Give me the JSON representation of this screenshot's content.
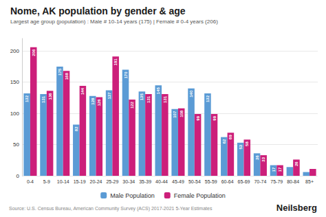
{
  "chart_data": {
    "type": "bar",
    "title": "Nome, AK population by gender & age",
    "subtitle": "Largest age group (population) : Male # 10-14 years (175) | Female # 0-4 years (206)",
    "annotations": [
      "Source: U.S. Census Bureau, American Community Survey (ACS) 2017-2021 5-Year Estimates",
      "Neilsberg"
    ],
    "categories": [
      "0-4",
      "5-9",
      "10-14",
      "15-19",
      "20-24",
      "25-29",
      "30-34",
      "35-39",
      "40-44",
      "45-49",
      "50-54",
      "55-59",
      "60-64",
      "65-69",
      "70-74",
      "75-79",
      "80-84",
      "85+"
    ],
    "series": [
      {
        "name": "Male Population",
        "color": "#5b9bd5",
        "values": [
          132,
          131,
          175,
          82,
          128,
          137,
          170,
          135,
          145,
          107,
          140,
          132,
          62,
          53,
          36,
          17,
          14,
          6
        ],
        "value_labels": [
          "132",
          "131",
          "175",
          "82",
          "128",
          "137",
          "170",
          "135",
          "145",
          "107",
          "140",
          "132",
          "62",
          "53",
          "36",
          "17",
          null,
          null
        ]
      },
      {
        "name": "Female Population",
        "color": "#cc1f7a",
        "values": [
          206,
          136,
          168,
          144,
          126,
          191,
          122,
          131,
          131,
          108,
          99,
          99,
          69,
          58,
          33,
          17,
          26,
          11
        ],
        "value_labels": [
          "206",
          "136",
          "168",
          "144",
          "126",
          "191",
          "122",
          "131",
          "131",
          "108",
          "99",
          "99",
          "69",
          "58",
          "33",
          "17",
          "26",
          null
        ]
      }
    ],
    "ylim": [
      0,
      220
    ],
    "yticks": [
      0,
      50,
      100,
      150,
      200
    ],
    "grid": true,
    "legend": "bottom",
    "data_labels": true
  }
}
